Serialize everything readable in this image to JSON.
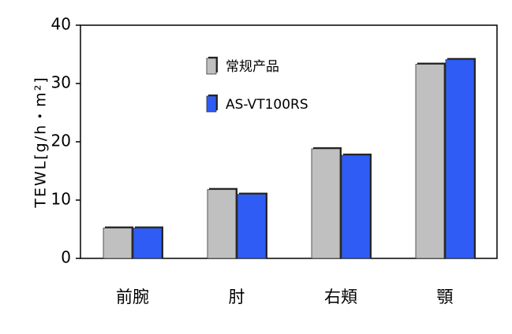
{
  "chart_data": {
    "type": "bar",
    "categories": [
      "前腕",
      "肘",
      "右頬",
      "顎"
    ],
    "series": [
      {
        "name": "常规产品",
        "values": [
          5.2,
          11.8,
          18.8,
          33.3
        ],
        "color": "#c0c0c0"
      },
      {
        "name": "AS-VT100RS",
        "values": [
          5.2,
          11.0,
          17.7,
          34.1
        ],
        "color": "#2f5cf5"
      }
    ],
    "ylabel": "TEWL[g/h・m²]",
    "ylim": [
      0,
      40
    ],
    "yticks": [
      0,
      10,
      20,
      30,
      40
    ],
    "grid": false,
    "legend": "top-left inside plot"
  }
}
